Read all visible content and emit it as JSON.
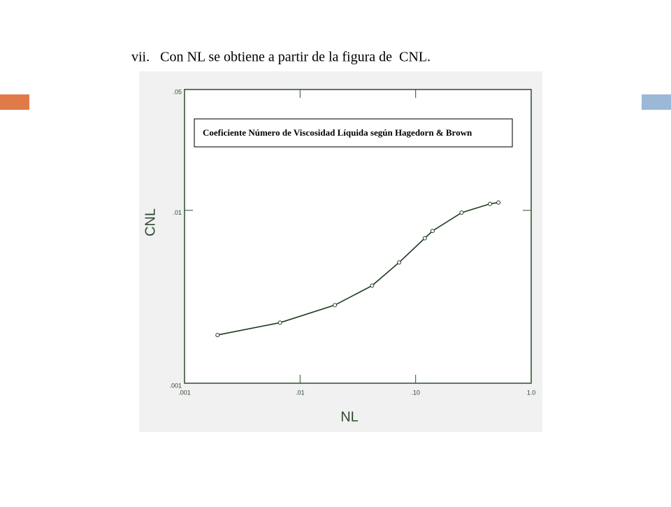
{
  "heading": "vii.   Con NL se obtiene a partir de la figura de  CNL.",
  "chart_data": {
    "type": "line",
    "title": "Coeficiente Número de Viscosidad Líquida según Hagedorn & Brown",
    "x_label": "NL",
    "y_label": "CNL",
    "x": [
      0.00193,
      0.0067,
      0.02,
      0.042,
      0.072,
      0.12,
      0.14,
      0.25,
      0.44,
      0.52
    ],
    "values": [
      0.0019,
      0.00224,
      0.00283,
      0.00367,
      0.005,
      0.0069,
      0.0076,
      0.0097,
      0.0109,
      0.0111
    ],
    "color": "#1f3a1f",
    "xlog": true,
    "ylog": true,
    "xlim": [
      0.001,
      1.0
    ],
    "ylim": [
      0.001,
      0.05
    ],
    "xticks": [
      {
        "value": 0.001,
        "label": ".001"
      },
      {
        "value": 0.01,
        "label": ".01"
      },
      {
        "value": 0.1,
        "label": ".10"
      },
      {
        "value": 1.0,
        "label": "1.0"
      }
    ],
    "yticks": [
      {
        "value": 0.001,
        "label": ".001"
      },
      {
        "value": 0.01,
        "label": ".01"
      },
      {
        "value": 0.05,
        "label": ".05"
      }
    ]
  }
}
